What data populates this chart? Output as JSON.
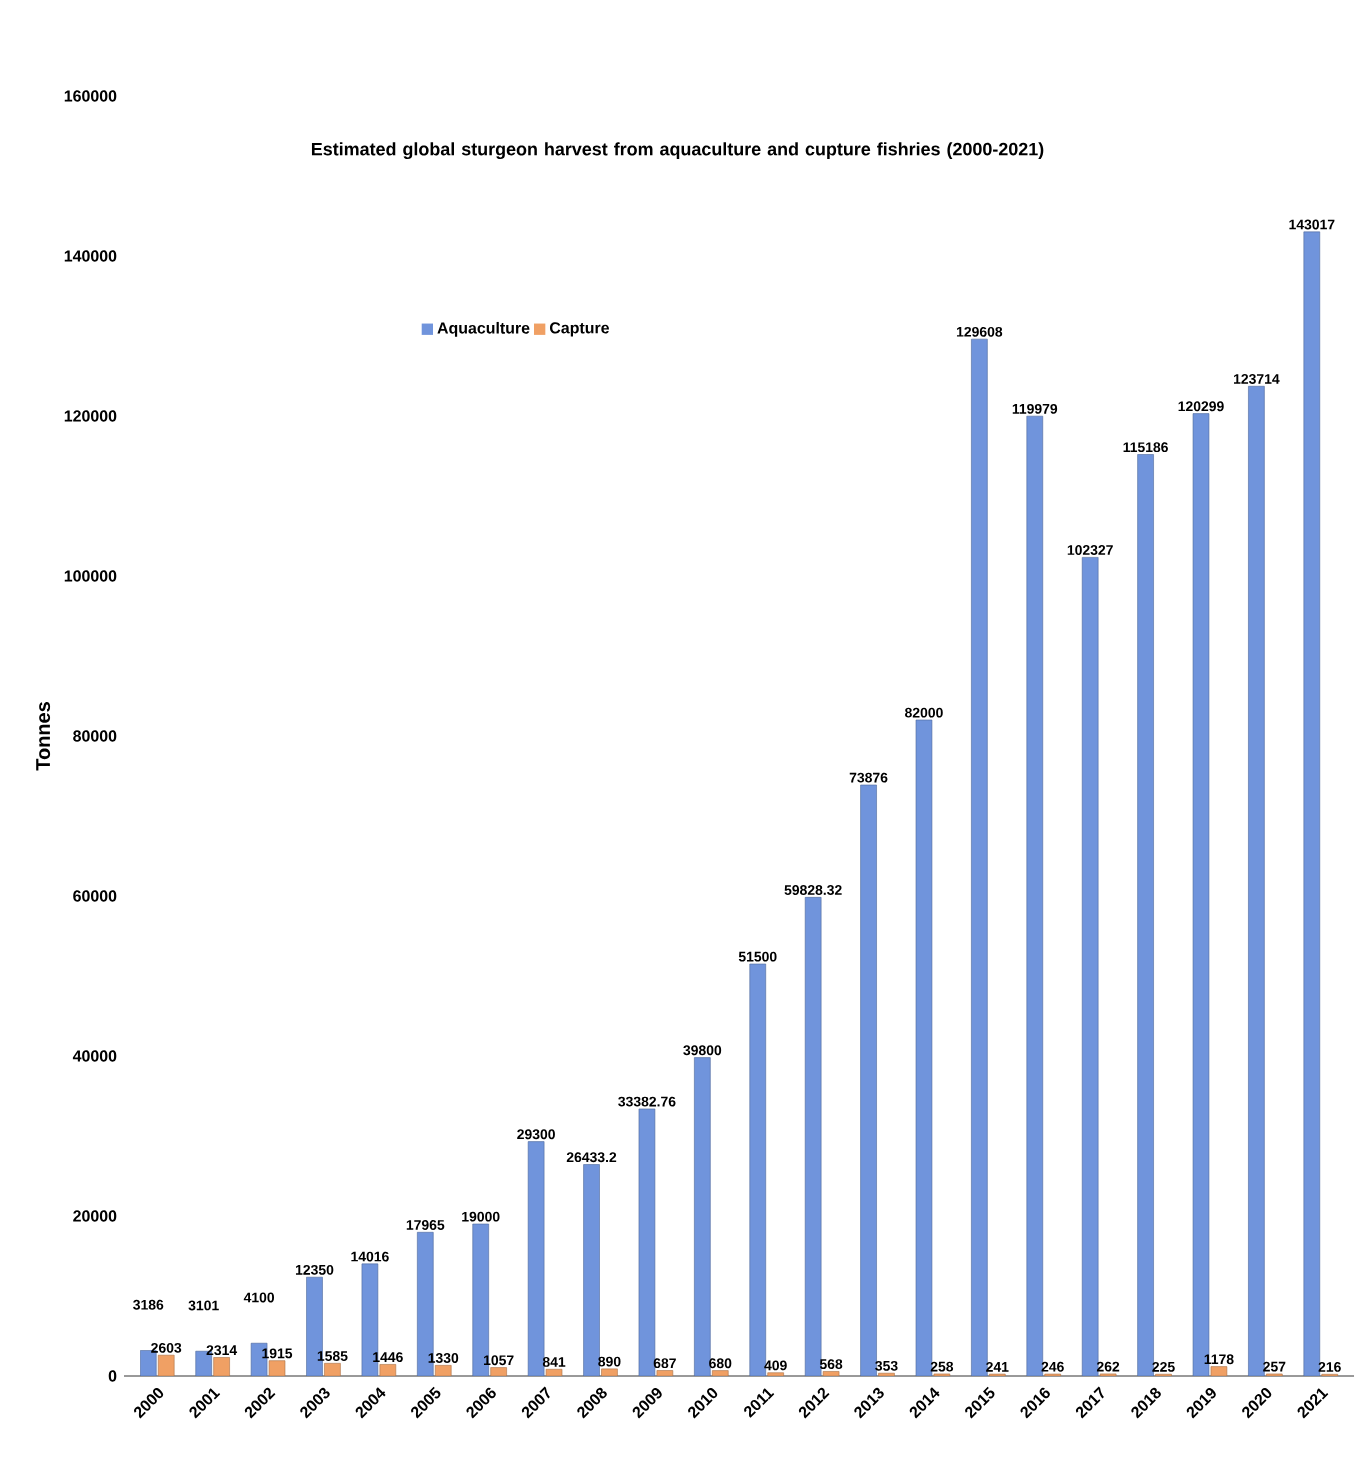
{
  "chart_data": {
    "type": "bar",
    "title": "Estimated global sturgeon harvest from aquaculture and cupture fishries (2000-2021)",
    "ylabel": "Tonnes",
    "categories": [
      "2000",
      "2001",
      "2002",
      "2003",
      "2004",
      "2005",
      "2006",
      "2007",
      "2008",
      "2009",
      "2010",
      "2011",
      "2012",
      "2013",
      "2014",
      "2015",
      "2016",
      "2017",
      "2018",
      "2019",
      "2020",
      "2021"
    ],
    "series": [
      {
        "name": "Aquaculture",
        "color": "#7094dc",
        "values": [
          3186,
          3101,
          4100,
          12350,
          14016,
          17965,
          19000,
          29300,
          26433.2,
          33382.76,
          39800,
          51500,
          59828.32,
          73876,
          82000,
          129608,
          119979,
          102327,
          115186,
          120299,
          123714,
          143017
        ]
      },
      {
        "name": "Capture",
        "color": "#f0a064",
        "values": [
          2603,
          2314,
          1915,
          1585,
          1446,
          1330,
          1057,
          841,
          890,
          687,
          680,
          409,
          568,
          353,
          258,
          241,
          246,
          262,
          225,
          1178,
          257,
          216
        ]
      }
    ],
    "ylim": [
      0,
      160000
    ],
    "yticks": [
      0,
      20000,
      40000,
      60000,
      80000,
      100000,
      120000,
      140000,
      160000
    ],
    "data_labels": true,
    "legend": "top",
    "grid": false
  }
}
